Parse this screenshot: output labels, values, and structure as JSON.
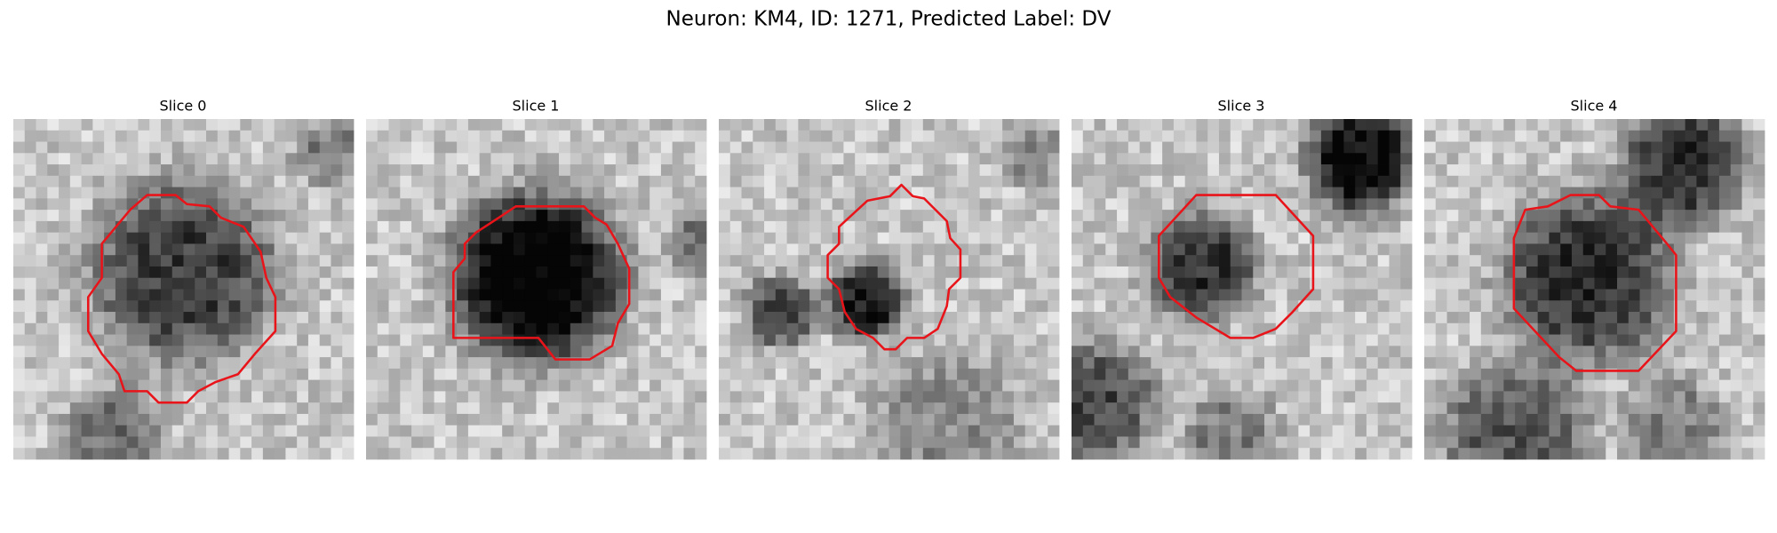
{
  "title": "Neuron: KM4, ID: 1271, Predicted Label: DV",
  "panels": [
    {
      "title": "Slice 0"
    },
    {
      "title": "Slice 1"
    },
    {
      "title": "Slice 2"
    },
    {
      "title": "Slice 3"
    },
    {
      "title": "Slice 4"
    }
  ]
}
